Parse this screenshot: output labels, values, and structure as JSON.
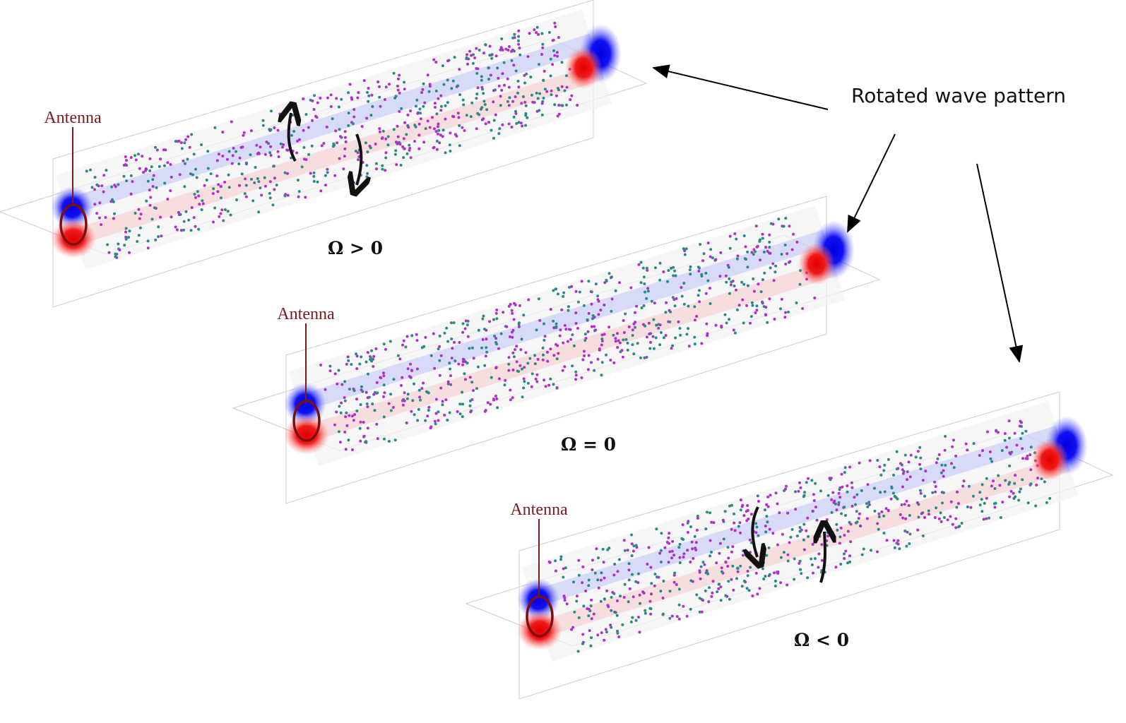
{
  "annotation": "Rotated wave pattern",
  "panels": [
    {
      "antenna": "Antenna",
      "omega": "Ω > 0"
    },
    {
      "antenna": "Antenna",
      "omega": "Ω = 0"
    },
    {
      "antenna": "Antenna",
      "omega": "Ω < 0"
    }
  ]
}
